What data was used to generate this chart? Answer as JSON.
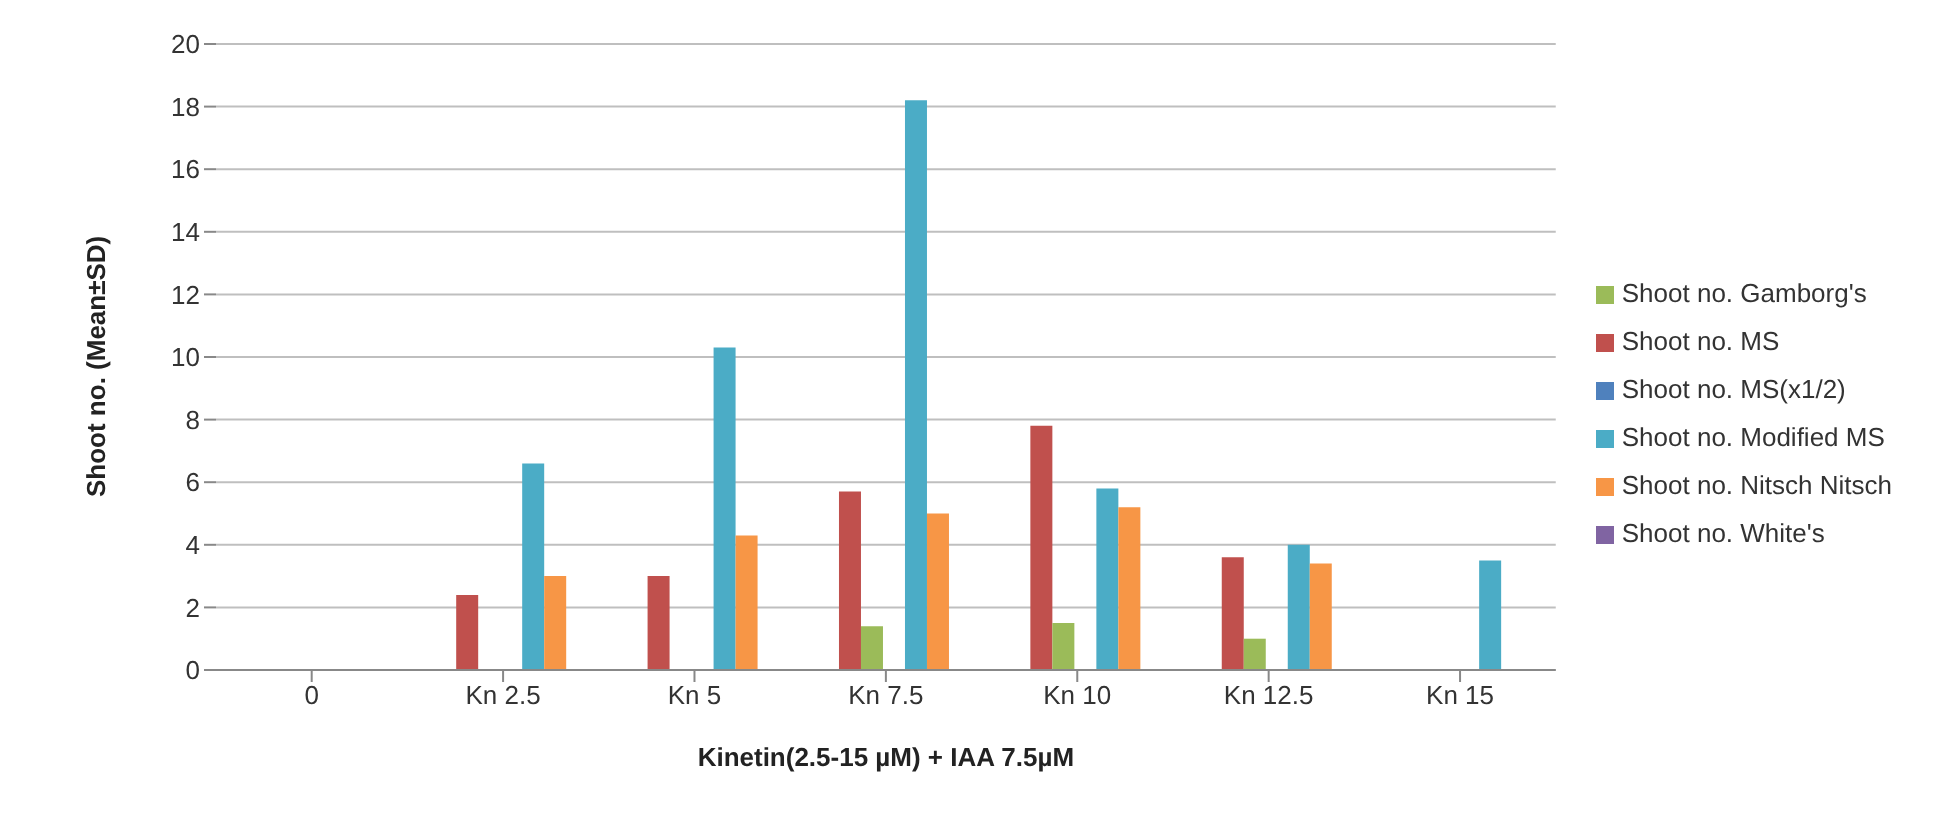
{
  "chart_data": {
    "type": "bar",
    "xlabel": "Kinetin(2.5-15 µM) + IAA 7.5µM",
    "ylabel": "Shoot no. (Mean±SD)",
    "categories": [
      "0",
      "Kn 2.5",
      "Kn 5",
      "Kn 7.5",
      "Kn 10",
      "Kn 12.5",
      "Kn 15"
    ],
    "series": [
      {
        "name": "Shoot no. MS(x1/2)",
        "color": "#4f81bd",
        "values": [
          null,
          null,
          null,
          null,
          null,
          null,
          null
        ]
      },
      {
        "name": "Shoot no. MS",
        "color": "#c0504d",
        "values": [
          null,
          2.4,
          3.0,
          5.7,
          7.8,
          3.6,
          null
        ]
      },
      {
        "name": "Shoot no. Gamborg's",
        "color": "#9bbb59",
        "values": [
          null,
          null,
          null,
          1.4,
          1.5,
          1.0,
          null
        ]
      },
      {
        "name": "Shoot no. White's",
        "color": "#8064a2",
        "values": [
          null,
          null,
          null,
          null,
          null,
          null,
          null
        ]
      },
      {
        "name": "Shoot no. Modified MS",
        "color": "#4bacc6",
        "values": [
          null,
          6.6,
          10.3,
          18.2,
          5.8,
          4.0,
          3.5
        ]
      },
      {
        "name": "Shoot no. Nitsch Nitsch",
        "color": "#f79646",
        "values": [
          null,
          3.0,
          4.3,
          5.0,
          5.2,
          3.4,
          null
        ]
      }
    ],
    "ylim": [
      0,
      20
    ],
    "yticks": [
      0,
      2,
      4,
      6,
      8,
      10,
      12,
      14,
      16,
      18,
      20
    ],
    "grid": "y",
    "legend": "right"
  }
}
